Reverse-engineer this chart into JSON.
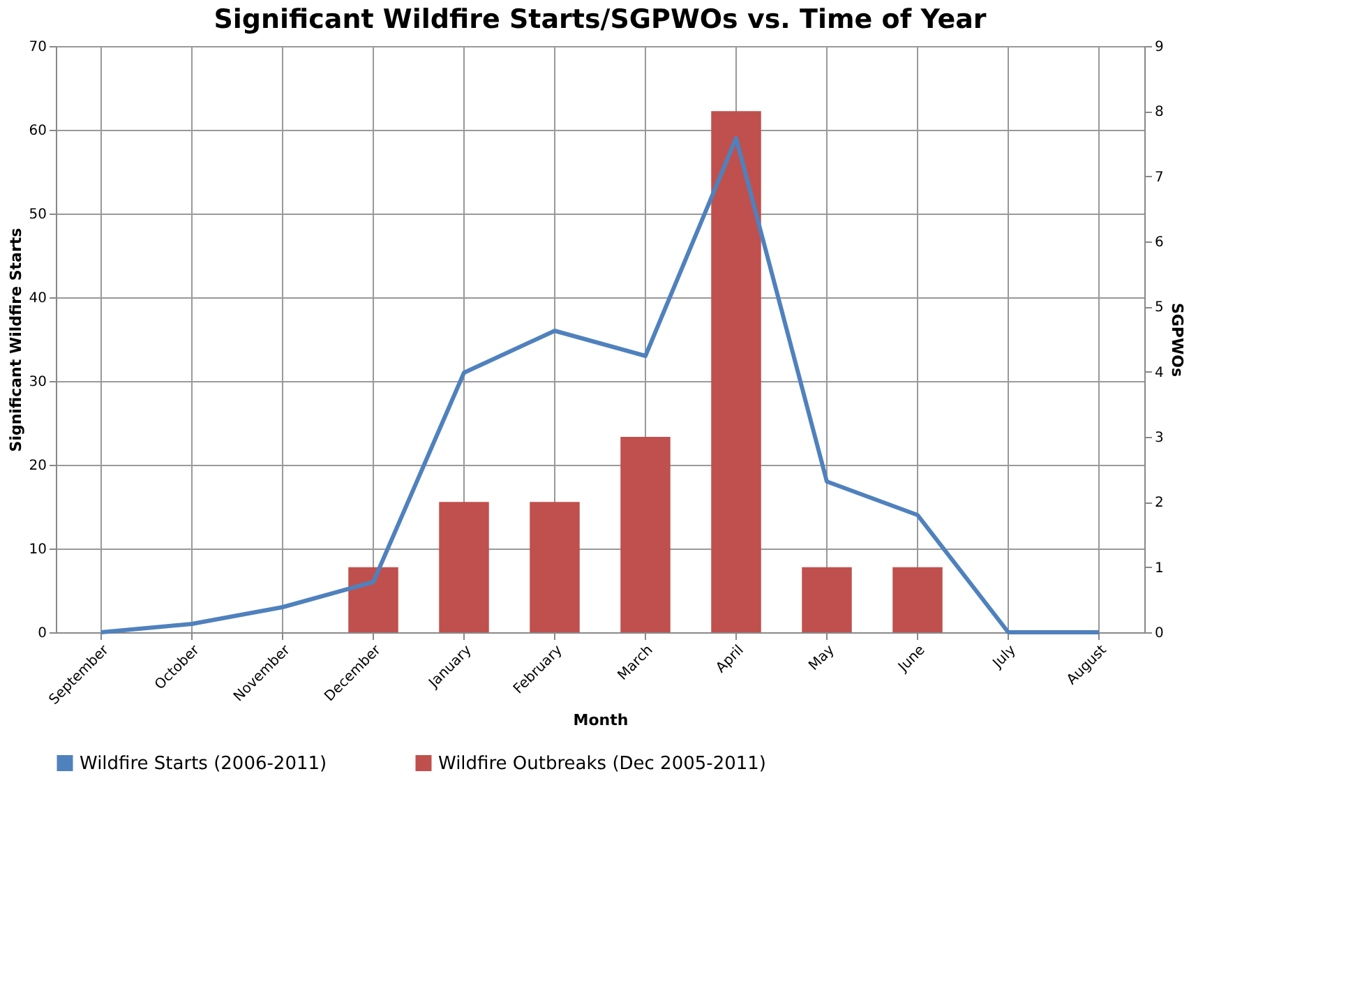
{
  "chart_data": {
    "type": "line",
    "title": "Significant Wildfire Starts/SGPWOs vs. Time of Year",
    "xlabel": "Month",
    "ylabel": "Significant  Wildfire Starts",
    "y2label": "SGPWOs",
    "categories": [
      "September",
      "October",
      "November",
      "December",
      "January",
      "February",
      "March",
      "April",
      "May",
      "June",
      "July",
      "August"
    ],
    "series": [
      {
        "name": "Wildfire Starts (2006-2011)",
        "color": "#4f81bd",
        "values": [
          0,
          1,
          3,
          6,
          31,
          36,
          33,
          59,
          18,
          14,
          0,
          0
        ]
      },
      {
        "name": "Wildfire Outbreaks (Dec 2005-2011)",
        "type": "bar",
        "axis": "y2",
        "color": "#c0504d",
        "values": [
          0,
          0,
          0,
          1,
          2,
          2,
          3,
          8,
          1,
          1,
          0,
          0
        ]
      }
    ],
    "ylim": [
      0,
      70
    ],
    "yticks": [
      0,
      10,
      20,
      30,
      40,
      50,
      60,
      70
    ],
    "y2lim": [
      0,
      9
    ],
    "y2ticks": [
      0,
      1,
      2,
      3,
      4,
      5,
      6,
      7,
      8,
      9
    ],
    "grid": true,
    "legend": "bottom",
    "marker": "none",
    "line_style": "solid"
  }
}
